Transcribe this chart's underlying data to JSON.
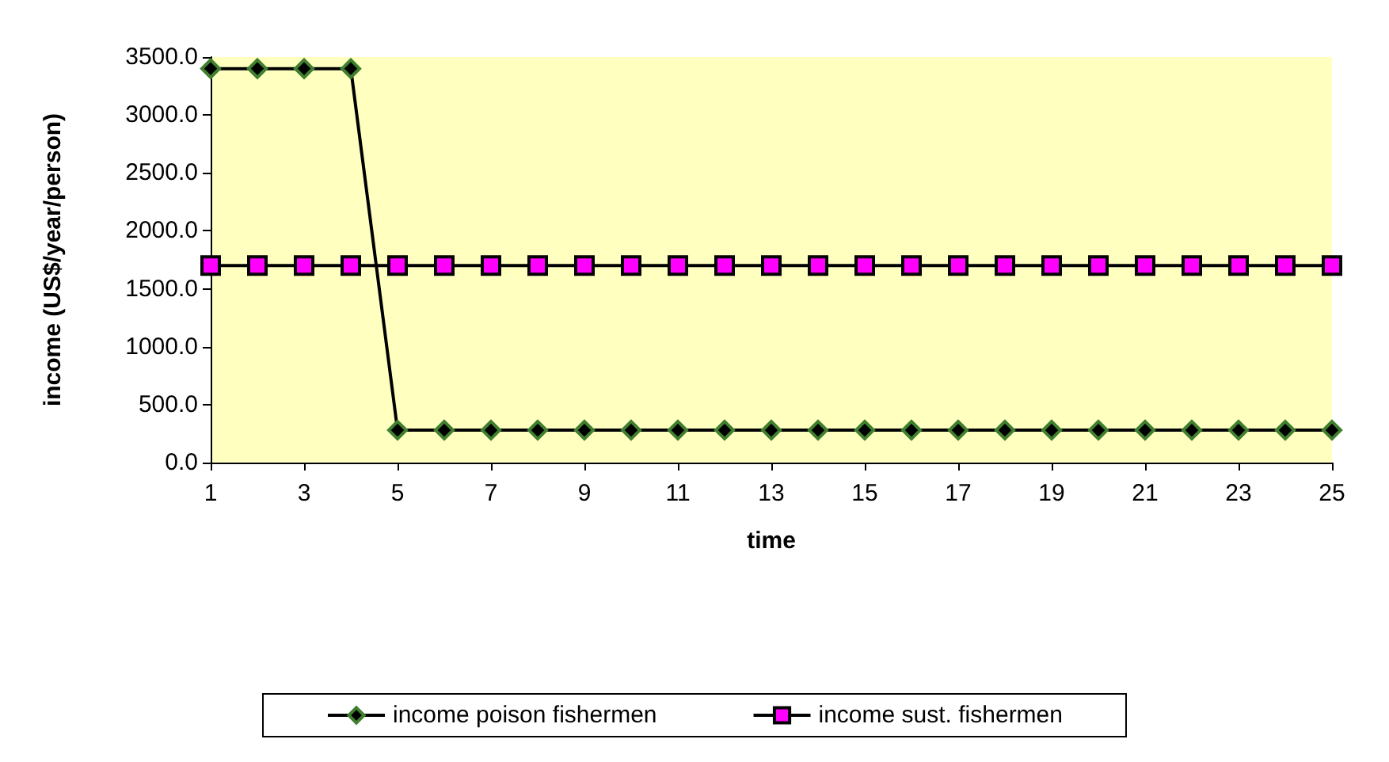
{
  "chart_data": {
    "type": "line",
    "xlabel": "time",
    "ylabel": "income (US$/year/person)",
    "x": [
      1,
      2,
      3,
      4,
      5,
      6,
      7,
      8,
      9,
      10,
      11,
      12,
      13,
      14,
      15,
      16,
      17,
      18,
      19,
      20,
      21,
      22,
      23,
      24,
      25
    ],
    "series": [
      {
        "name": "income poison fishermen",
        "color": "#000000",
        "marker": "diamond",
        "values": [
          3400,
          3400,
          3400,
          3400,
          280,
          280,
          280,
          280,
          280,
          280,
          280,
          280,
          280,
          280,
          280,
          280,
          280,
          280,
          280,
          280,
          280,
          280,
          280,
          280,
          280
        ]
      },
      {
        "name": "income sust. fishermen",
        "color": "#ff00ff",
        "marker": "square",
        "values": [
          1700,
          1700,
          1700,
          1700,
          1700,
          1700,
          1700,
          1700,
          1700,
          1700,
          1700,
          1700,
          1700,
          1700,
          1700,
          1700,
          1700,
          1700,
          1700,
          1700,
          1700,
          1700,
          1700,
          1700,
          1700
        ]
      }
    ],
    "xlim": [
      1,
      25
    ],
    "xticks": [
      1,
      3,
      5,
      7,
      9,
      11,
      13,
      15,
      17,
      19,
      21,
      23,
      25
    ],
    "ylim": [
      0,
      3500
    ],
    "yticks": [
      {
        "value": 0,
        "label": "0.0"
      },
      {
        "value": 500,
        "label": "500.0"
      },
      {
        "value": 1000,
        "label": "1000.0"
      },
      {
        "value": 1500,
        "label": "1500.0"
      },
      {
        "value": 2000,
        "label": "2000.0"
      },
      {
        "value": 2500,
        "label": "2500.0"
      },
      {
        "value": 3000,
        "label": "3000.0"
      },
      {
        "value": 3500,
        "label": "3500.0"
      }
    ],
    "grid": false,
    "legend": "bottom",
    "line_style": "solid"
  }
}
